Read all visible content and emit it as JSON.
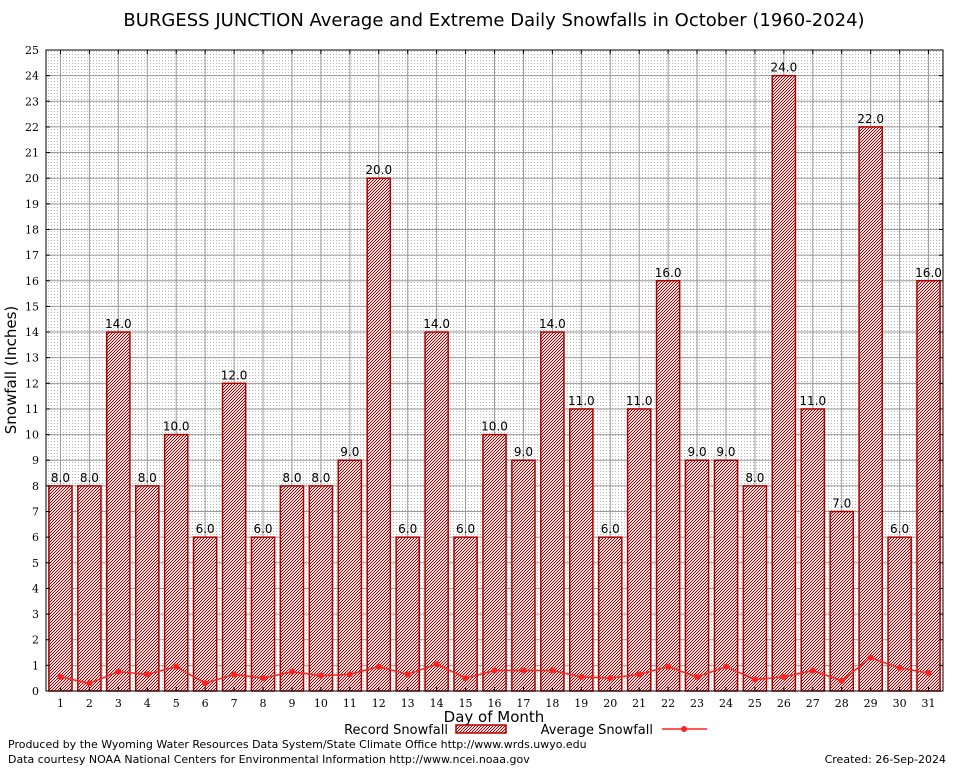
{
  "chart_data": {
    "type": "bar",
    "title": "BURGESS JUNCTION Average and Extreme Daily Snowfalls in October (1960-2024)",
    "xlabel": "Day of Month",
    "ylabel": "Snowfall (Inches)",
    "ylim": [
      0,
      25
    ],
    "yticks": [
      "0",
      "1",
      "2",
      "3",
      "4",
      "5",
      "6",
      "7",
      "8",
      "9",
      "10",
      "11",
      "12",
      "13",
      "14",
      "15",
      "16",
      "17",
      "18",
      "19",
      "20",
      "21",
      "22",
      "23",
      "24",
      "25"
    ],
    "categories": [
      "1",
      "2",
      "3",
      "4",
      "5",
      "6",
      "7",
      "8",
      "9",
      "10",
      "11",
      "12",
      "13",
      "14",
      "15",
      "16",
      "17",
      "18",
      "19",
      "20",
      "21",
      "22",
      "23",
      "24",
      "25",
      "26",
      "27",
      "28",
      "29",
      "30",
      "31"
    ],
    "grid": true,
    "legend_position": "bottom-center",
    "series": [
      {
        "name": "Record Snowfall",
        "kind": "bar",
        "color": "#b00000",
        "values": [
          8,
          8,
          14,
          8,
          10,
          6,
          12,
          6,
          8,
          8,
          9,
          20,
          6,
          14,
          6,
          10,
          9,
          14,
          11,
          6,
          11,
          16,
          9,
          9,
          8,
          24,
          11,
          7,
          22,
          6,
          16
        ],
        "labels": [
          "8.0",
          "8.0",
          "14.0",
          "8.0",
          "10.0",
          "6.0",
          "12.0",
          "6.0",
          "8.0",
          "8.0",
          "9.0",
          "20.0",
          "6.0",
          "14.0",
          "6.0",
          "10.0",
          "9.0",
          "14.0",
          "11.0",
          "6.0",
          "11.0",
          "16.0",
          "9.0",
          "9.0",
          "8.0",
          "24.0",
          "11.0",
          "7.0",
          "22.0",
          "6.0",
          "16.0"
        ]
      },
      {
        "name": "Average Snowfall",
        "kind": "line",
        "color": "#ff2020",
        "values": [
          0.55,
          0.3,
          0.75,
          0.65,
          0.95,
          0.3,
          0.65,
          0.5,
          0.75,
          0.6,
          0.65,
          0.95,
          0.65,
          1.05,
          0.5,
          0.8,
          0.8,
          0.8,
          0.55,
          0.5,
          0.65,
          0.95,
          0.55,
          0.95,
          0.45,
          0.55,
          0.8,
          0.4,
          1.3,
          0.9,
          0.7
        ]
      }
    ]
  },
  "footer": {
    "producer": "Produced by the Wyoming Water Resources Data System/State Climate Office http://www.wrds.uwyo.edu",
    "courtesy": "Data courtesy NOAA National Centers for Environmental Information http://www.ncei.noaa.gov",
    "created": "Created:  26-Sep-2024"
  }
}
